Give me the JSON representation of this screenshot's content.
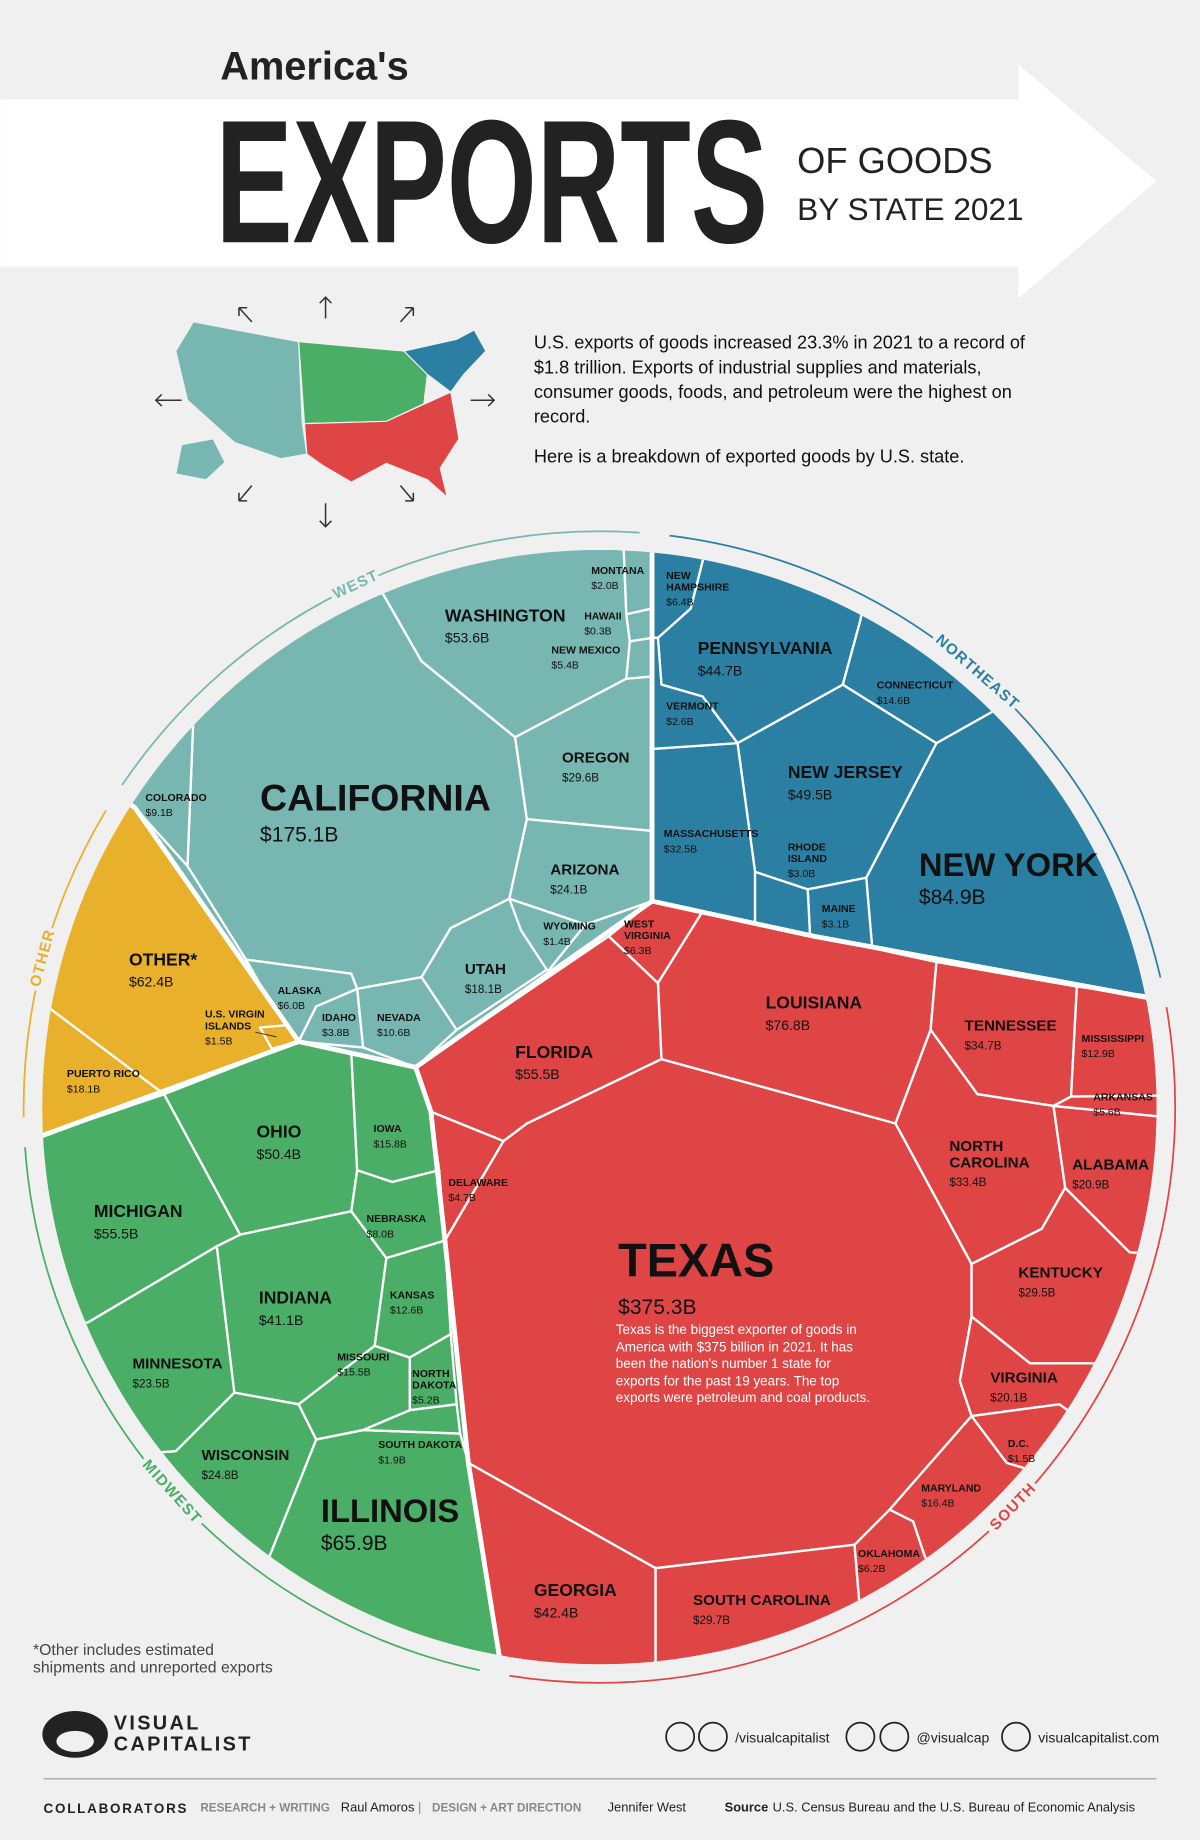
{
  "header": {
    "kicker": "America's",
    "title": "EXPORTS",
    "subtitle_1": "OF GOODS",
    "subtitle_2": "BY STATE 2021"
  },
  "intro": [
    "U.S. exports of goods increased 23.3% in 2021 to a record of $1.8 trillion. Exports of industrial supplies and materials, consumer goods, foods, and petroleum were the highest on record.",
    "Here is a breakdown of exported goods by U.S. state."
  ],
  "chart_data": {
    "type": "treemap",
    "annotation": "Texas is the biggest exporter of goods in America with $375 billion in 2021. It has been the nation's number 1 state for exports for the past 19 years. The top exports were petroleum and coal products.",
    "groups": [
      {
        "name": "WEST",
        "color": "#78b6b2",
        "categories": [
          "CALIFORNIA",
          "WASHINGTON",
          "OREGON",
          "ARIZONA",
          "UTAH",
          "NEVADA",
          "COLORADO",
          "ALASKA",
          "NEW MEXICO",
          "IDAHO",
          "MONTANA",
          "WYOMING",
          "HAWAII"
        ],
        "values": [
          175.1,
          53.6,
          29.6,
          24.1,
          18.1,
          10.6,
          9.1,
          6.0,
          5.4,
          3.8,
          2.0,
          1.4,
          0.3
        ],
        "value_labels": [
          "$175.1B",
          "$53.6B",
          "$29.6B",
          "$24.1B",
          "$18.1B",
          "$10.6B",
          "$9.1B",
          "$6.0B",
          "$5.4B",
          "$3.8B",
          "$2.0B",
          "$1.4B",
          "$0.3B"
        ]
      },
      {
        "name": "NORTHEAST",
        "color": "#2a7fa3",
        "categories": [
          "NEW YORK",
          "NEW JERSEY",
          "PENNSYLVANIA",
          "MASSACHUSETTS",
          "CONNECTICUT",
          "NEW HAMPSHIRE",
          "MAINE",
          "RHODE ISLAND",
          "VERMONT"
        ],
        "values": [
          84.9,
          49.5,
          44.7,
          32.5,
          14.6,
          6.4,
          3.1,
          3.0,
          2.6
        ],
        "value_labels": [
          "$84.9B",
          "$49.5B",
          "$44.7B",
          "$32.5B",
          "$14.6B",
          "$6.4B",
          "$3.1B",
          "$3.0B",
          "$2.6B"
        ]
      },
      {
        "name": "SOUTH",
        "color": "#df4545",
        "categories": [
          "TEXAS",
          "LOUISIANA",
          "FLORIDA",
          "GEORGIA",
          "TENNESSEE",
          "NORTH CAROLINA",
          "SOUTH CAROLINA",
          "KENTUCKY",
          "ALABAMA",
          "VIRGINIA",
          "MARYLAND",
          "MISSISSIPPI",
          "WEST VIRGINIA",
          "OKLAHOMA",
          "ARKANSAS",
          "DELAWARE",
          "D.C."
        ],
        "values": [
          375.3,
          76.8,
          55.5,
          42.4,
          34.7,
          33.4,
          29.7,
          29.5,
          20.9,
          20.1,
          16.4,
          12.9,
          6.3,
          6.2,
          5.6,
          4.7,
          1.5
        ],
        "value_labels": [
          "$375.3B",
          "$76.8B",
          "$55.5B",
          "$42.4B",
          "$34.7B",
          "$33.4B",
          "$29.7B",
          "$29.5B",
          "$20.9B",
          "$20.1B",
          "$16.4B",
          "$12.9B",
          "$6.3B",
          "$6.2B",
          "$5.6B",
          "$4.7B",
          "$1.5B"
        ]
      },
      {
        "name": "MIDWEST",
        "color": "#4aae66",
        "categories": [
          "ILLINOIS",
          "MICHIGAN",
          "OHIO",
          "INDIANA",
          "WISCONSIN",
          "MINNESOTA",
          "IOWA",
          "MISSOURI",
          "KANSAS",
          "NEBRASKA",
          "NORTH DAKOTA",
          "SOUTH DAKOTA"
        ],
        "values": [
          65.9,
          55.5,
          50.4,
          41.1,
          24.8,
          23.5,
          15.8,
          15.5,
          12.6,
          8.0,
          5.2,
          1.9
        ],
        "value_labels": [
          "$65.9B",
          "$55.5B",
          "$50.4B",
          "$41.1B",
          "$24.8B",
          "$23.5B",
          "$15.8B",
          "$15.5B",
          "$12.6B",
          "$8.0B",
          "$5.2B",
          "$1.9B"
        ]
      },
      {
        "name": "OTHER",
        "color": "#e8b02b",
        "categories": [
          "OTHER*",
          "PUERTO RICO",
          "U.S. VIRGIN ISLANDS"
        ],
        "values": [
          62.4,
          18.1,
          1.5
        ],
        "value_labels": [
          "$62.4B",
          "$18.1B",
          "$1.5B"
        ]
      }
    ]
  },
  "footnote": "*Other includes estimated shipments and unreported exports",
  "footer": {
    "brand_1": "VISUAL",
    "brand_2": "CAPITALIST",
    "facebook": "/visualcapitalist",
    "twitter": "@visualcap",
    "website": "visualcapitalist.com",
    "collaborators": "COLLABORATORS",
    "research_label": "RESEARCH + WRITING",
    "research_name": "Raul Amoros",
    "separator": "|",
    "design_label": "DESIGN + ART DIRECTION",
    "design_name": "Jennifer West",
    "source_label": "Source",
    "source": "U.S. Census Bureau and the U.S. Bureau of Economic Analysis"
  }
}
